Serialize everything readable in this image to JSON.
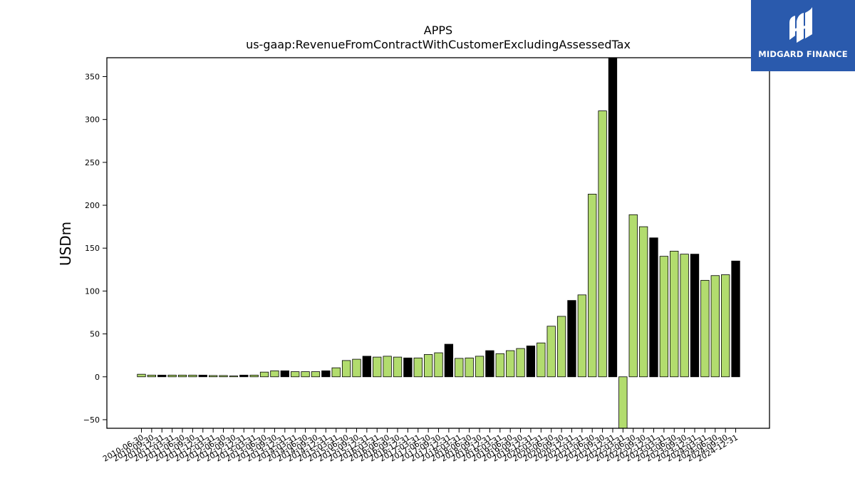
{
  "chart_data": {
    "type": "bar",
    "title": "APPS",
    "subtitle": "us-gaap:RevenueFromContractWithCustomerExcludingAssessedTax",
    "xlabel": "",
    "ylabel": "USDm",
    "ylim": [
      -60,
      372
    ],
    "yticks": [
      -50,
      0,
      50,
      100,
      150,
      200,
      250,
      300,
      350
    ],
    "grid": false,
    "colors": {
      "quarter": "#b2dc6e",
      "fiscal_year_end": "#000000",
      "edge": "#000000"
    },
    "categories": [
      "2010-06-30",
      "2010-09-30",
      "2010-12-31",
      "2011-03-31",
      "2011-06-30",
      "2011-09-30",
      "2011-12-31",
      "2012-03-31",
      "2012-06-30",
      "2012-09-30",
      "2012-12-31",
      "2013-03-31",
      "2013-06-30",
      "2013-09-30",
      "2013-12-31",
      "2014-03-31",
      "2014-06-30",
      "2014-09-30",
      "2014-12-31",
      "2015-03-31",
      "2015-06-30",
      "2015-09-30",
      "2015-12-31",
      "2016-03-31",
      "2016-06-30",
      "2016-09-30",
      "2016-12-31",
      "2017-03-31",
      "2017-06-30",
      "2017-09-30",
      "2017-12-31",
      "2018-03-31",
      "2018-06-30",
      "2018-09-30",
      "2018-12-31",
      "2019-03-31",
      "2019-06-30",
      "2019-09-30",
      "2019-12-31",
      "2020-03-31",
      "2020-06-30",
      "2020-09-30",
      "2020-12-31",
      "2021-03-31",
      "2021-06-30",
      "2021-09-30",
      "2021-12-31",
      "2022-03-31",
      "2022-06-30",
      "2022-09-30",
      "2022-12-31",
      "2023-03-31",
      "2023-06-30",
      "2023-09-30",
      "2023-12-31",
      "2024-03-31",
      "2024-06-30",
      "2024-09-30",
      "2024-12-31"
    ],
    "values": [
      3,
      2,
      2,
      2,
      2,
      2,
      2,
      1.5,
      1.5,
      1,
      2,
      2,
      5.5,
      7,
      7,
      6,
      6,
      6,
      7,
      10.5,
      19,
      20.5,
      24,
      23,
      24,
      23,
      22,
      22,
      26,
      28,
      38,
      21.5,
      22,
      24,
      30.5,
      27,
      30.5,
      33,
      36,
      39.5,
      59,
      70.5,
      89,
      95.5,
      213,
      310,
      372,
      -60,
      189,
      175,
      162,
      140.5,
      146.5,
      143,
      143,
      112.5,
      118,
      119,
      135
    ],
    "fiscal_year_end_flags": [
      0,
      0,
      1,
      0,
      0,
      0,
      1,
      0,
      0,
      0,
      1,
      0,
      0,
      0,
      1,
      0,
      0,
      0,
      1,
      0,
      0,
      0,
      1,
      0,
      0,
      0,
      1,
      0,
      0,
      0,
      1,
      0,
      0,
      0,
      1,
      0,
      0,
      0,
      1,
      0,
      0,
      0,
      1,
      0,
      0,
      0,
      1,
      0,
      0,
      0,
      1,
      0,
      0,
      0,
      1,
      0,
      0,
      0,
      1
    ]
  },
  "logo": {
    "text": "MIDGARD FINANCE"
  }
}
